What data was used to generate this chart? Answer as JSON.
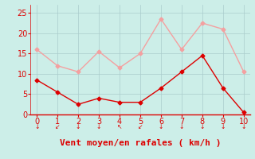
{
  "x": [
    0,
    1,
    2,
    3,
    4,
    5,
    6,
    7,
    8,
    9,
    10
  ],
  "vent_moyen": [
    8.5,
    5.5,
    2.5,
    4.0,
    3.0,
    3.0,
    6.5,
    10.5,
    14.5,
    6.5,
    0.5
  ],
  "rafales": [
    16.0,
    12.0,
    10.5,
    15.5,
    11.5,
    15.0,
    23.5,
    16.0,
    22.5,
    21.0,
    10.5
  ],
  "color_moyen": "#dd0000",
  "color_rafales": "#f4a0a0",
  "background_color": "#cceee8",
  "grid_color": "#aacccc",
  "xlabel": "Vent moyen/en rafales ( km/h )",
  "xlim": [
    -0.3,
    10.3
  ],
  "ylim": [
    0,
    27
  ],
  "yticks": [
    0,
    5,
    10,
    15,
    20,
    25
  ],
  "xticks": [
    0,
    1,
    2,
    3,
    4,
    5,
    6,
    7,
    8,
    9,
    10
  ],
  "marker": "D",
  "markersize": 2.5,
  "linewidth": 1.0,
  "xlabel_color": "#dd0000",
  "xlabel_fontsize": 8,
  "tick_fontsize": 7
}
